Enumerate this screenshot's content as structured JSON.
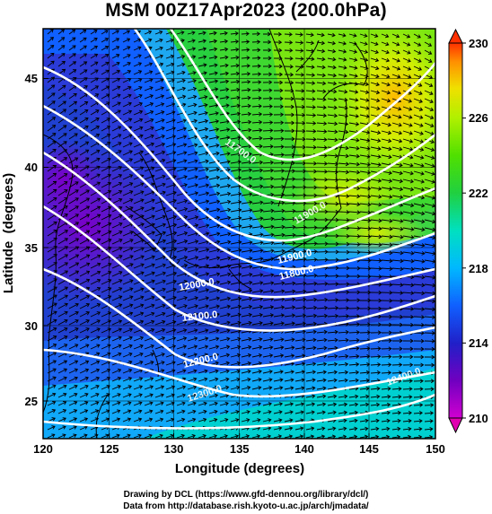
{
  "title": "MSM 00Z17Apr2023 (200.0hPa)",
  "x_axis": {
    "label": "Longitude (degrees)",
    "ticks": [
      "120",
      "125",
      "130",
      "135",
      "140",
      "145",
      "150"
    ],
    "range": [
      120,
      150
    ]
  },
  "y_axis": {
    "label": "Latitude  (degrees)",
    "ticks": [
      "25",
      "30",
      "35",
      "40",
      "45"
    ],
    "range": [
      22.4,
      47.6
    ]
  },
  "colorbar": {
    "ticks": [
      "210",
      "214",
      "218",
      "222",
      "226",
      "230"
    ],
    "range": [
      210,
      230
    ],
    "colors": [
      "#d000d0",
      "#8a00c8",
      "#2020c8",
      "#1060ff",
      "#00b8ff",
      "#00e0c0",
      "#20d040",
      "#50e000",
      "#b0f000",
      "#f0e000",
      "#ff9000",
      "#ff3000"
    ]
  },
  "contour_labels": [
    "12000.0",
    "12100.0",
    "12200.0",
    "12300.0",
    "11900.0",
    "11800.0",
    "11700.0",
    "11900.0",
    "12400.0"
  ],
  "credits": {
    "line1": "Drawing by DCL (https://www.gfd-dennou.org/library/dcl/)",
    "line2": "Data from http://database.rish.kyoto-u.ac.jp/arch/jmadata/"
  }
}
